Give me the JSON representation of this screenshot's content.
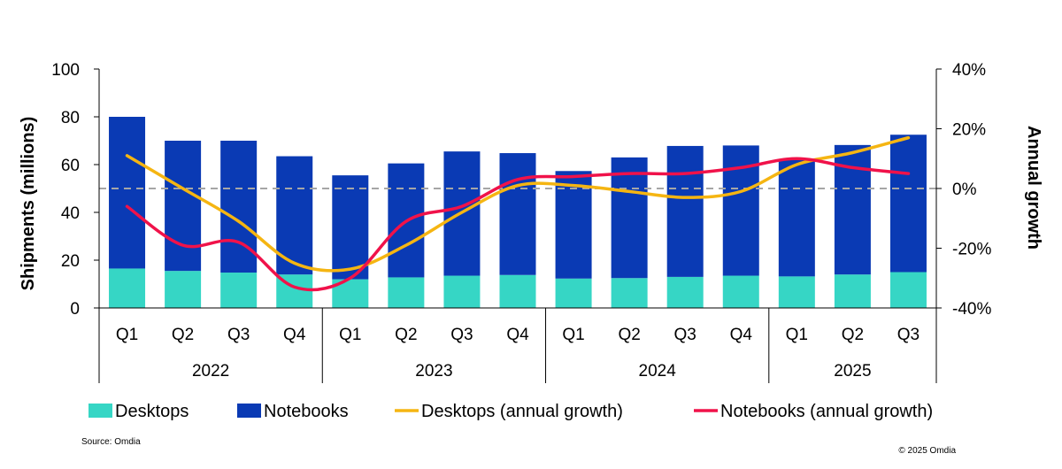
{
  "chart_data": {
    "type": "bar",
    "categories": [
      "Q1",
      "Q2",
      "Q3",
      "Q4",
      "Q1",
      "Q2",
      "Q3",
      "Q4",
      "Q1",
      "Q2",
      "Q3",
      "Q4",
      "Q1",
      "Q2",
      "Q3"
    ],
    "years": [
      {
        "label": "2022",
        "count": 4
      },
      {
        "label": "2023",
        "count": 4
      },
      {
        "label": "2024",
        "count": 4
      },
      {
        "label": "2025",
        "count": 3
      }
    ],
    "series": [
      {
        "name": "Desktops",
        "kind": "bar",
        "color": "#36d6c5",
        "values": [
          16.5,
          15.5,
          14.8,
          14.0,
          12.0,
          12.8,
          13.5,
          13.8,
          12.3,
          12.5,
          13.0,
          13.5,
          13.2,
          14.0,
          15.0
        ]
      },
      {
        "name": "Notebooks",
        "kind": "bar",
        "color": "#0a3ab4",
        "values": [
          63.5,
          54.5,
          55.2,
          49.5,
          43.5,
          47.7,
          52.0,
          51.0,
          45.0,
          50.5,
          54.8,
          54.5,
          49.0,
          54.2,
          57.5
        ]
      },
      {
        "name": "Desktops (annual growth)",
        "kind": "line",
        "axis": "right",
        "color": "#f5b512",
        "values": [
          11,
          0,
          -11,
          -25,
          -27,
          -19,
          -8,
          1,
          1,
          -1,
          -3,
          -1,
          8,
          12,
          17
        ]
      },
      {
        "name": "Notebooks (annual growth)",
        "kind": "line",
        "axis": "right",
        "color": "#f0124a",
        "values": [
          -6,
          -19,
          -18,
          -33,
          -30,
          -11,
          -6,
          3,
          4,
          5,
          5,
          7,
          10,
          7,
          5
        ]
      }
    ],
    "ylabel": "Shipments (millions)",
    "ylabel_right": "Annual growth",
    "ylim": [
      0,
      100
    ],
    "yticks": [
      0,
      20,
      40,
      60,
      80,
      100
    ],
    "ylim_right": [
      -40,
      40
    ],
    "yticks_right": [
      "-40%",
      "-20%",
      "0%",
      "20%",
      "40%"
    ],
    "zero_line": "dashed gray at 0%",
    "legend_position": "bottom"
  },
  "footer": {
    "source": "Source: Omdia",
    "copyright": "© 2025 Omdia"
  }
}
